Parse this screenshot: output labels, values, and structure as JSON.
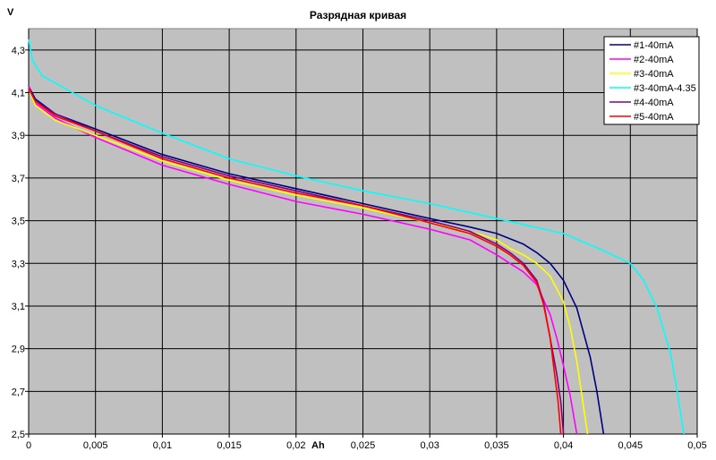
{
  "chart_data": {
    "type": "line",
    "title": "Разрядная кривая",
    "xlabel": "Ah",
    "ylabel": "V",
    "xlim": [
      0,
      0.05
    ],
    "ylim": [
      2.5,
      4.4
    ],
    "x_ticks": [
      "0",
      "0,005",
      "0,01",
      "0,015",
      "0,02",
      "0,025",
      "0,03",
      "0,035",
      "0,04",
      "0,045",
      "0,05"
    ],
    "y_ticks": [
      "2,5",
      "2,7",
      "2,9",
      "3,1",
      "3,3",
      "3,5",
      "3,7",
      "3,9",
      "4,1",
      "4,3"
    ],
    "y_tick_values": [
      2.5,
      2.7,
      2.9,
      3.1,
      3.3,
      3.5,
      3.7,
      3.9,
      4.1,
      4.3
    ],
    "grid": true,
    "plot_background": "#c0c0c0",
    "legend_position": "top-right",
    "series": [
      {
        "name": "#1-40mA",
        "color": "#00007f",
        "x": [
          0,
          0.0005,
          0.002,
          0.005,
          0.01,
          0.015,
          0.02,
          0.025,
          0.03,
          0.033,
          0.035,
          0.037,
          0.038,
          0.039,
          0.04,
          0.041,
          0.042,
          0.0425,
          0.043
        ],
        "y": [
          4.13,
          4.07,
          4.0,
          3.93,
          3.81,
          3.72,
          3.65,
          3.58,
          3.51,
          3.47,
          3.44,
          3.39,
          3.35,
          3.3,
          3.22,
          3.09,
          2.86,
          2.7,
          2.5
        ]
      },
      {
        "name": "#2-40mA",
        "color": "#ff00ff",
        "x": [
          0,
          0.0005,
          0.002,
          0.005,
          0.01,
          0.015,
          0.02,
          0.025,
          0.03,
          0.033,
          0.035,
          0.036,
          0.037,
          0.038,
          0.039,
          0.0395,
          0.04,
          0.0405,
          0.041
        ],
        "y": [
          4.13,
          4.05,
          3.98,
          3.89,
          3.76,
          3.67,
          3.59,
          3.53,
          3.46,
          3.41,
          3.34,
          3.3,
          3.26,
          3.2,
          3.06,
          2.95,
          2.82,
          2.68,
          2.5
        ]
      },
      {
        "name": "#3-40mA",
        "color": "#ffff00",
        "x": [
          0,
          0.0005,
          0.002,
          0.005,
          0.01,
          0.015,
          0.02,
          0.025,
          0.03,
          0.033,
          0.035,
          0.036,
          0.037,
          0.038,
          0.039,
          0.04,
          0.0405,
          0.041,
          0.0418
        ],
        "y": [
          4.12,
          4.04,
          3.97,
          3.9,
          3.78,
          3.69,
          3.62,
          3.56,
          3.49,
          3.45,
          3.41,
          3.37,
          3.34,
          3.3,
          3.24,
          3.12,
          3.0,
          2.84,
          2.5
        ]
      },
      {
        "name": "#3-40mA-4.35",
        "color": "#00ffff",
        "x": [
          0,
          0.0003,
          0.001,
          0.003,
          0.005,
          0.01,
          0.015,
          0.02,
          0.025,
          0.03,
          0.035,
          0.04,
          0.043,
          0.045,
          0.046,
          0.047,
          0.048,
          0.0485,
          0.049
        ],
        "y": [
          4.35,
          4.25,
          4.18,
          4.11,
          4.04,
          3.91,
          3.79,
          3.71,
          3.64,
          3.58,
          3.51,
          3.44,
          3.36,
          3.3,
          3.22,
          3.09,
          2.88,
          2.7,
          2.5
        ]
      },
      {
        "name": "#4-40mA",
        "color": "#800080",
        "x": [
          0,
          0.0005,
          0.002,
          0.005,
          0.01,
          0.015,
          0.02,
          0.025,
          0.03,
          0.033,
          0.035,
          0.036,
          0.037,
          0.038,
          0.0385,
          0.039,
          0.0395,
          0.0398,
          0.04
        ],
        "y": [
          4.12,
          4.06,
          4.0,
          3.92,
          3.8,
          3.71,
          3.64,
          3.57,
          3.5,
          3.45,
          3.39,
          3.35,
          3.3,
          3.22,
          3.12,
          2.95,
          2.78,
          2.65,
          2.5
        ]
      },
      {
        "name": "#5-40mA",
        "color": "#ff0000",
        "x": [
          0,
          0.0005,
          0.002,
          0.005,
          0.01,
          0.015,
          0.02,
          0.025,
          0.03,
          0.033,
          0.035,
          0.036,
          0.037,
          0.038,
          0.0385,
          0.039,
          0.0393,
          0.0396,
          0.0398
        ],
        "y": [
          4.12,
          4.06,
          3.99,
          3.92,
          3.79,
          3.7,
          3.63,
          3.57,
          3.49,
          3.44,
          3.38,
          3.34,
          3.29,
          3.21,
          3.11,
          2.95,
          2.8,
          2.65,
          2.5
        ]
      }
    ]
  }
}
